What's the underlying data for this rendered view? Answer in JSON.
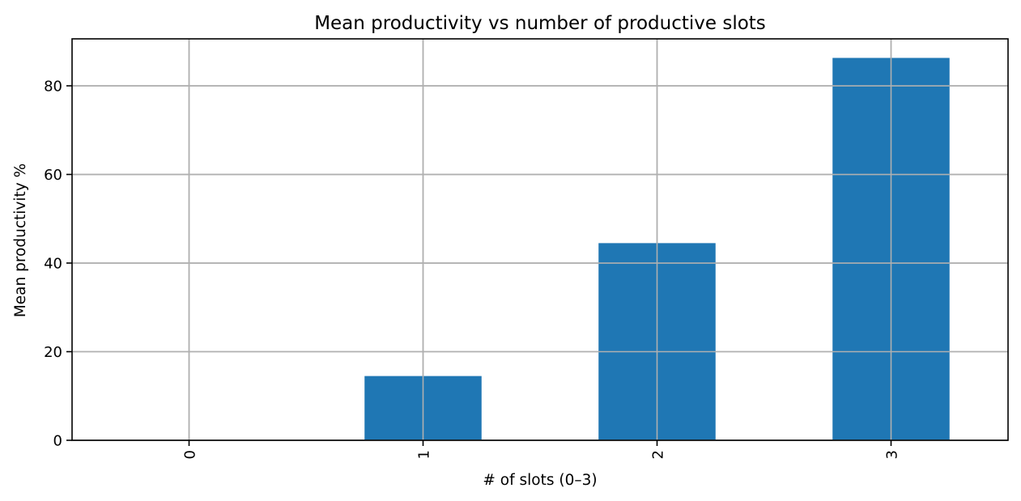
{
  "chart_data": {
    "type": "bar",
    "title": "Mean productivity vs number of productive slots",
    "xlabel": "# of slots (0–3)",
    "ylabel": "Mean productivity %",
    "categories": [
      "0",
      "1",
      "2",
      "3"
    ],
    "values": [
      0,
      14.5,
      44.5,
      86.3
    ],
    "ylim": [
      0,
      90.6
    ],
    "yticks": [
      0,
      20,
      40,
      60,
      80
    ],
    "x_tick_rotation": "vertical",
    "grid": true,
    "legend": "none",
    "bar_color": "#1f77b4",
    "grid_color": "#b0b0b0"
  }
}
